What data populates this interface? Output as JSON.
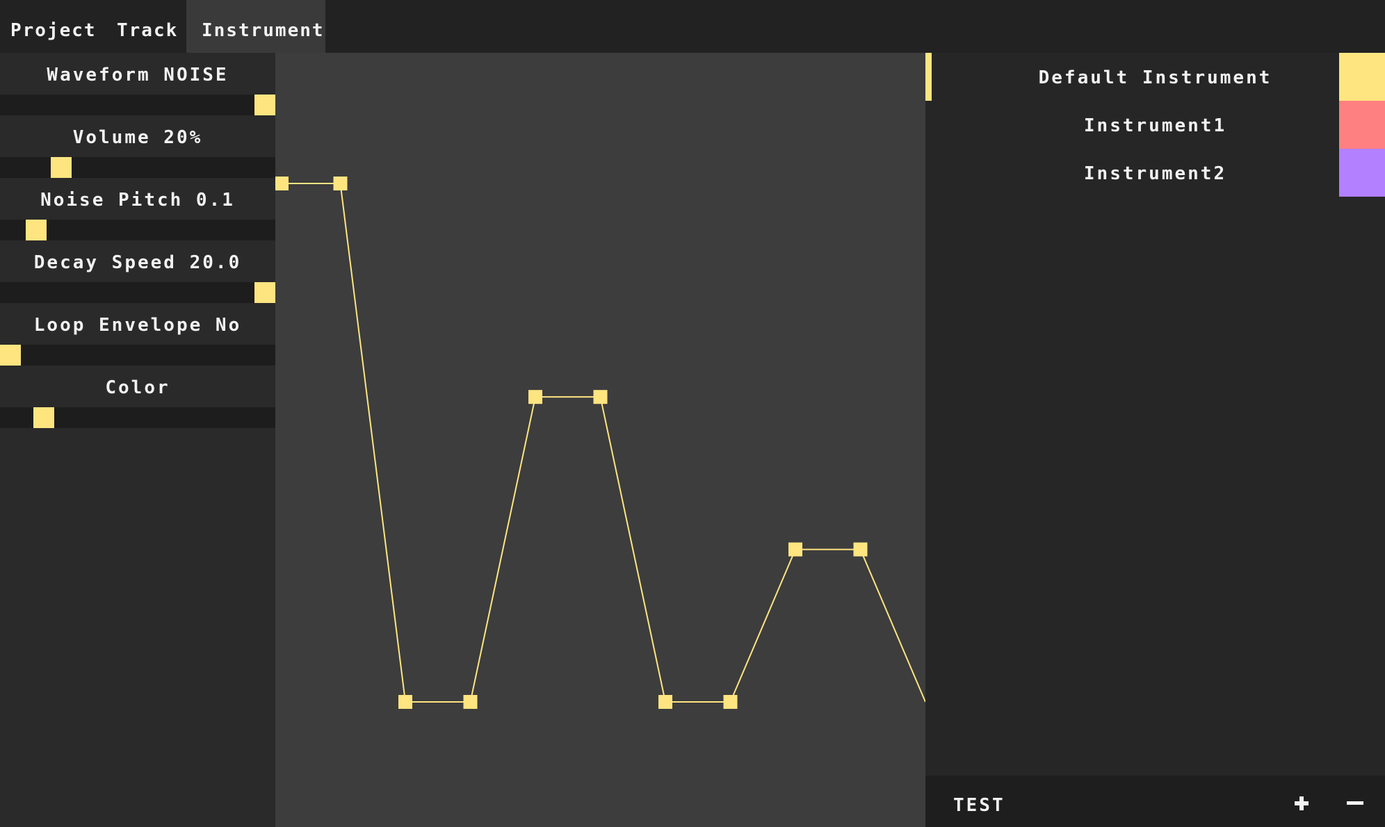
{
  "menu": {
    "tabs": [
      {
        "label": "Project"
      },
      {
        "label": "Track"
      },
      {
        "label": "Instrument"
      }
    ]
  },
  "params": [
    {
      "label": "Waveform NOISE",
      "level": 1.0
    },
    {
      "label": "Volume 20%",
      "level": 0.2
    },
    {
      "label": "Noise Pitch 0.1",
      "level": 0.1
    },
    {
      "label": "Decay Speed 20.0",
      "level": 1.0
    },
    {
      "label": "Loop Envelope No",
      "level": 0.0
    },
    {
      "label": "Color",
      "level": 0.13
    }
  ],
  "envelope": {
    "color": "#ffe580",
    "points": [
      [
        0.0,
        0.85
      ],
      [
        0.1,
        0.85
      ],
      [
        0.2,
        0.0
      ],
      [
        0.3,
        0.0
      ],
      [
        0.4,
        0.5
      ],
      [
        0.5,
        0.5
      ],
      [
        0.6,
        0.0
      ],
      [
        0.7,
        0.0
      ],
      [
        0.8,
        0.25
      ],
      [
        0.9,
        0.25
      ],
      [
        1.0,
        0.0
      ]
    ]
  },
  "instruments": [
    {
      "name": "Default Instrument",
      "color": "#ffe580",
      "selected": true
    },
    {
      "name": "Instrument1",
      "color": "#ff8080",
      "selected": false
    },
    {
      "name": "Instrument2",
      "color": "#b380ff",
      "selected": false
    }
  ],
  "bottom": {
    "test_label": "TEST",
    "add_icon": "plus-icon",
    "remove_icon": "minus-icon"
  },
  "colors": {
    "accent": "#ffe580",
    "background": "#222222",
    "panel": "#2a2a2a",
    "editor": "#3d3d3d"
  }
}
